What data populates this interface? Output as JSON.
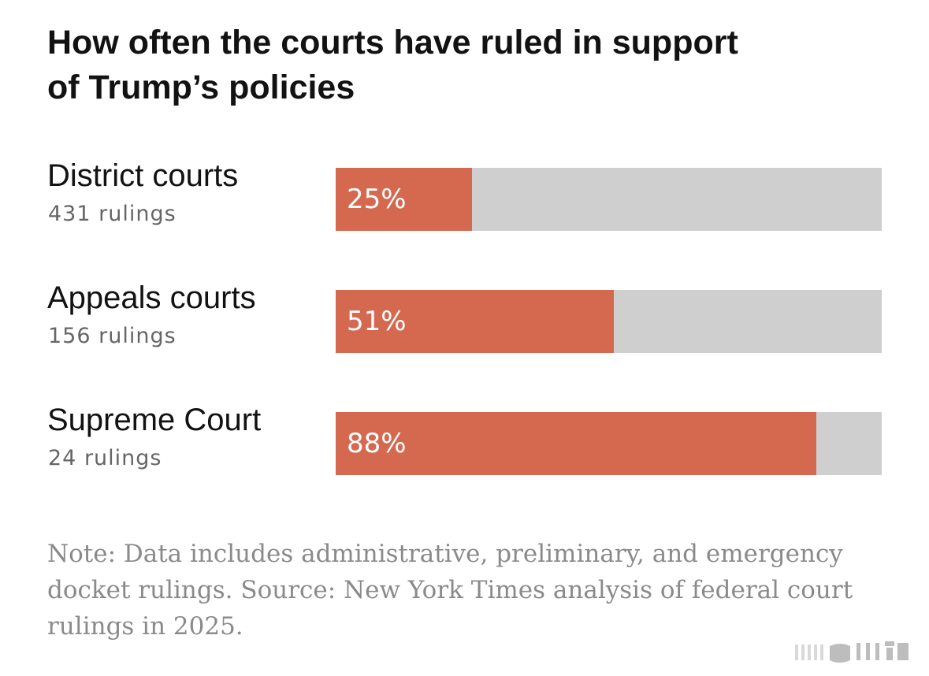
{
  "chart_data": {
    "type": "bar",
    "orientation": "horizontal",
    "title": "How often the courts have ruled in support of Trump’s policies",
    "title_lines": [
      "How often the courts have ruled in support",
      "of Trump’s policies"
    ],
    "categories": [
      "District courts",
      "Appeals courts",
      "Supreme Court"
    ],
    "rulings": [
      "431 rulings",
      "156 rulings",
      "24 rulings"
    ],
    "values": [
      25,
      51,
      88
    ],
    "value_labels": [
      "25%",
      "51%",
      "88%"
    ],
    "xlim": [
      0,
      100
    ],
    "xlabel": "",
    "ylabel": "",
    "grid": false,
    "note_lines": [
      "Note: Data includes administrative, preliminary, and emergency",
      "docket rulings. Source: New York Times analysis of federal court",
      "rulings in 2025."
    ]
  },
  "colors": {
    "bar_fill": "#d4694f",
    "bar_track": "#cfcfcf",
    "title": "#121212",
    "note": "#8a8a8a"
  },
  "watermark": {
    "icon": "watermark-logo-icon"
  }
}
